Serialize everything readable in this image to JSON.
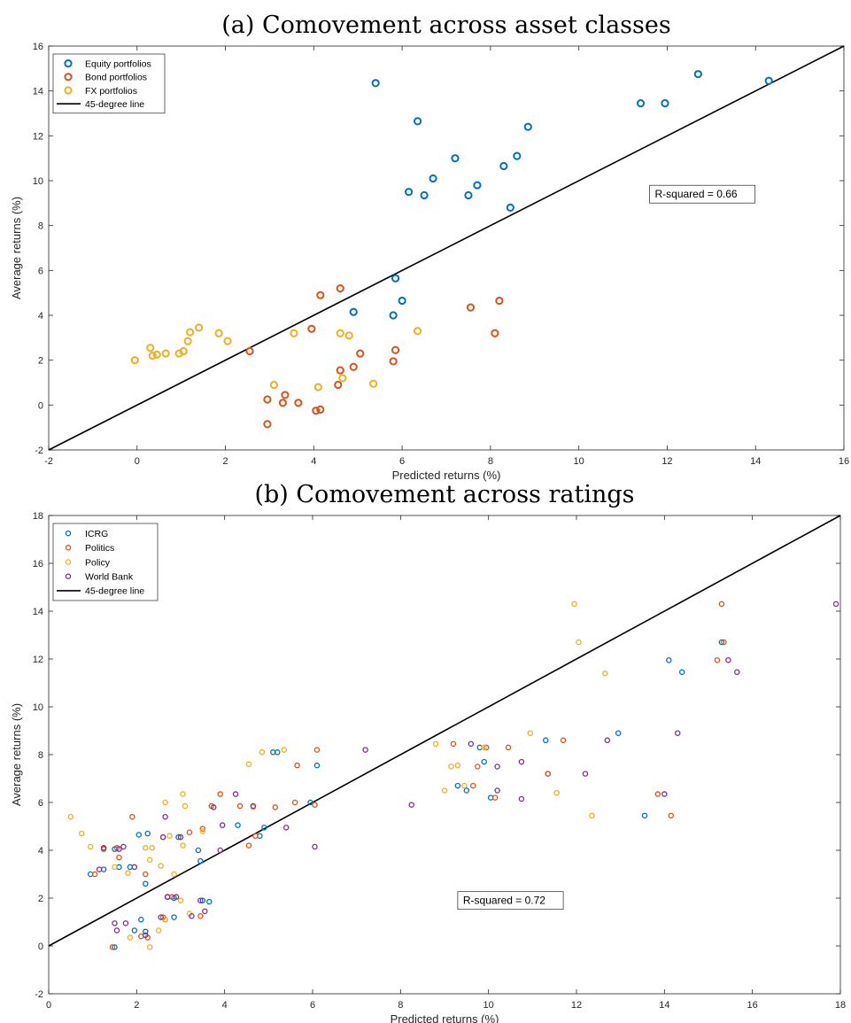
{
  "chart_data": [
    {
      "type": "scatter",
      "title": "(a) Comovement across asset classes",
      "xlabel": "Predicted returns (%)",
      "ylabel": "Average returns (%)",
      "xlim": [
        -2,
        16
      ],
      "ylim": [
        -2,
        16
      ],
      "xticks": [
        -2,
        0,
        2,
        4,
        6,
        8,
        10,
        12,
        14,
        16
      ],
      "yticks": [
        -2,
        0,
        2,
        4,
        6,
        8,
        10,
        12,
        14,
        16
      ],
      "grid": false,
      "legend_position": "top-left",
      "reference_line": {
        "name": "45-degree line",
        "color": "#000000"
      },
      "annotation": "R-squared = 0.66",
      "annotation_at": [
        11.6,
        9.4
      ],
      "series": [
        {
          "name": "Equity portfolios",
          "color": "#0072BD",
          "x": [
            5.4,
            6.35,
            8.85,
            7.2,
            8.3,
            8.6,
            6.7,
            6.15,
            6.5,
            7.5,
            7.7,
            8.45,
            11.4,
            11.95,
            12.7,
            14.3,
            5.85,
            6.0,
            4.9,
            5.8
          ],
          "y": [
            14.35,
            12.65,
            12.4,
            11.0,
            10.65,
            11.1,
            10.1,
            9.5,
            9.35,
            9.35,
            9.8,
            8.8,
            13.45,
            13.45,
            14.75,
            14.45,
            5.65,
            4.65,
            4.15,
            4.0
          ]
        },
        {
          "name": "Bond portfolios",
          "color": "#D95319",
          "x": [
            4.6,
            4.15,
            8.2,
            7.55,
            8.1,
            3.95,
            2.55,
            5.85,
            5.05,
            4.6,
            5.8,
            4.9,
            4.55,
            3.35,
            3.3,
            2.95,
            3.65,
            4.15,
            4.05,
            2.95
          ],
          "y": [
            5.2,
            4.9,
            4.65,
            4.35,
            3.2,
            3.4,
            2.4,
            2.45,
            2.3,
            1.55,
            1.95,
            1.7,
            0.9,
            0.45,
            0.1,
            0.25,
            0.1,
            -0.2,
            -0.25,
            -0.85
          ]
        },
        {
          "name": "FX portfolios",
          "color": "#EDB120",
          "x": [
            -0.05,
            0.3,
            0.35,
            0.45,
            0.65,
            0.95,
            1.05,
            1.15,
            1.2,
            1.4,
            1.85,
            2.05,
            3.55,
            4.6,
            4.8,
            6.35,
            3.1,
            4.1,
            4.65,
            5.35
          ],
          "y": [
            2.0,
            2.55,
            2.2,
            2.25,
            2.3,
            2.3,
            2.4,
            2.85,
            3.25,
            3.45,
            3.2,
            2.85,
            3.2,
            3.2,
            3.1,
            3.3,
            0.9,
            0.8,
            1.2,
            0.95
          ]
        }
      ]
    },
    {
      "type": "scatter",
      "title": "(b) Comovement across ratings",
      "xlabel": "Predicted returns (%)",
      "ylabel": "Average returns (%)",
      "xlim": [
        0,
        18
      ],
      "ylim": [
        -2,
        18
      ],
      "xticks": [
        0,
        2,
        4,
        6,
        8,
        10,
        12,
        14,
        16,
        18
      ],
      "yticks": [
        -2,
        0,
        2,
        4,
        6,
        8,
        10,
        12,
        14,
        16,
        18
      ],
      "grid": false,
      "legend_position": "top-left",
      "reference_line": {
        "name": "45-degree line",
        "color": "#000000"
      },
      "annotation": "R-squared = 0.72",
      "annotation_at": [
        9.3,
        1.9
      ],
      "series": [
        {
          "name": "ICRG",
          "color": "#0072BD",
          "x": [
            15.3,
            14.1,
            14.4,
            12.95,
            11.3,
            11.35,
            9.9,
            9.8,
            9.3,
            9.5,
            10.05,
            13.55,
            5.1,
            5.2,
            6.1,
            5.95,
            4.8,
            4.9,
            4.3,
            3.4,
            2.95,
            2.05,
            2.25,
            1.5,
            1.25,
            0.95,
            1.6,
            2.2,
            1.85,
            2.85,
            3.5,
            3.65,
            2.85,
            3.45,
            2.1,
            2.2,
            1.95,
            1.5
          ],
          "y": [
            12.7,
            11.95,
            11.45,
            8.9,
            8.6,
            7.2,
            7.7,
            8.3,
            6.7,
            6.5,
            6.2,
            5.45,
            8.1,
            8.1,
            7.55,
            6.0,
            4.6,
            4.95,
            5.05,
            4.0,
            4.55,
            4.65,
            4.7,
            4.05,
            3.2,
            3.0,
            3.3,
            2.6,
            3.3,
            2.0,
            1.9,
            1.85,
            1.2,
            3.55,
            1.1,
            0.6,
            0.65,
            -0.05
          ]
        },
        {
          "name": "Politics",
          "color": "#D95319",
          "x": [
            15.3,
            15.2,
            15.35,
            14.15,
            13.85,
            11.7,
            11.35,
            10.45,
            9.95,
            9.75,
            9.2,
            9.65,
            10.15,
            6.1,
            6.05,
            5.65,
            5.6,
            5.15,
            4.7,
            4.55,
            4.35,
            3.9,
            3.7,
            3.5,
            3.2,
            2.8,
            1.9,
            1.55,
            1.6,
            1.25,
            1.05,
            2.2,
            2.6,
            3.45,
            2.65,
            2.1,
            2.25,
            1.45
          ],
          "y": [
            14.3,
            11.95,
            12.7,
            5.45,
            6.35,
            8.6,
            7.2,
            8.3,
            8.3,
            7.5,
            8.45,
            6.7,
            6.2,
            8.2,
            5.9,
            7.55,
            6.0,
            5.8,
            4.6,
            4.2,
            5.85,
            6.35,
            5.85,
            4.9,
            4.75,
            2.05,
            5.4,
            4.1,
            3.7,
            4.05,
            3.0,
            3.0,
            1.2,
            1.25,
            1.1,
            0.4,
            0.35,
            -0.05
          ]
        },
        {
          "name": "Policy",
          "color": "#EDB120",
          "x": [
            11.95,
            12.05,
            12.65,
            10.95,
            11.55,
            12.35,
            8.8,
            9.3,
            9.15,
            9.45,
            9.0,
            9.9,
            5.35,
            4.85,
            4.55,
            4.65,
            3.05,
            3.1,
            3.5,
            2.65,
            2.6,
            3.05,
            2.2,
            2.3,
            2.35,
            2.75,
            2.55,
            3.0,
            2.85,
            1.8,
            1.5,
            0.95,
            0.75,
            0.5,
            1.85,
            3.2,
            2.65,
            2.5,
            2.3
          ],
          "y": [
            14.3,
            12.7,
            11.4,
            8.9,
            6.4,
            5.45,
            8.45,
            7.55,
            7.5,
            6.7,
            6.5,
            8.3,
            8.2,
            8.1,
            7.6,
            5.8,
            6.35,
            5.85,
            4.8,
            6.0,
            4.55,
            4.2,
            4.1,
            3.6,
            4.1,
            4.6,
            3.35,
            1.9,
            3.0,
            3.05,
            3.3,
            4.15,
            4.7,
            5.4,
            0.35,
            1.35,
            1.1,
            0.65,
            -0.05
          ]
        },
        {
          "name": "World Bank",
          "color": "#7E2F8E",
          "x": [
            17.9,
            15.45,
            15.65,
            14.3,
            12.7,
            12.2,
            10.75,
            10.75,
            10.2,
            10.2,
            9.6,
            14.0,
            7.2,
            8.25,
            6.05,
            5.4,
            4.25,
            4.65,
            3.75,
            3.95,
            3.9,
            3.0,
            2.6,
            2.65,
            2.7,
            1.7,
            1.6,
            1.25,
            1.15,
            1.95,
            1.75,
            2.2,
            2.9,
            2.55,
            2.7,
            3.25,
            3.45,
            3.55,
            1.5,
            1.55
          ],
          "y": [
            14.3,
            11.95,
            11.45,
            8.9,
            8.6,
            7.2,
            7.7,
            6.15,
            6.5,
            7.5,
            8.45,
            6.35,
            8.2,
            5.9,
            4.15,
            4.95,
            6.35,
            5.85,
            5.8,
            5.05,
            4.0,
            4.55,
            4.55,
            5.4,
            2.05,
            4.15,
            4.05,
            4.1,
            3.2,
            3.3,
            0.95,
            0.45,
            2.05,
            1.2,
            2.05,
            1.25,
            1.9,
            1.45,
            0.95,
            0.65
          ]
        }
      ]
    }
  ]
}
